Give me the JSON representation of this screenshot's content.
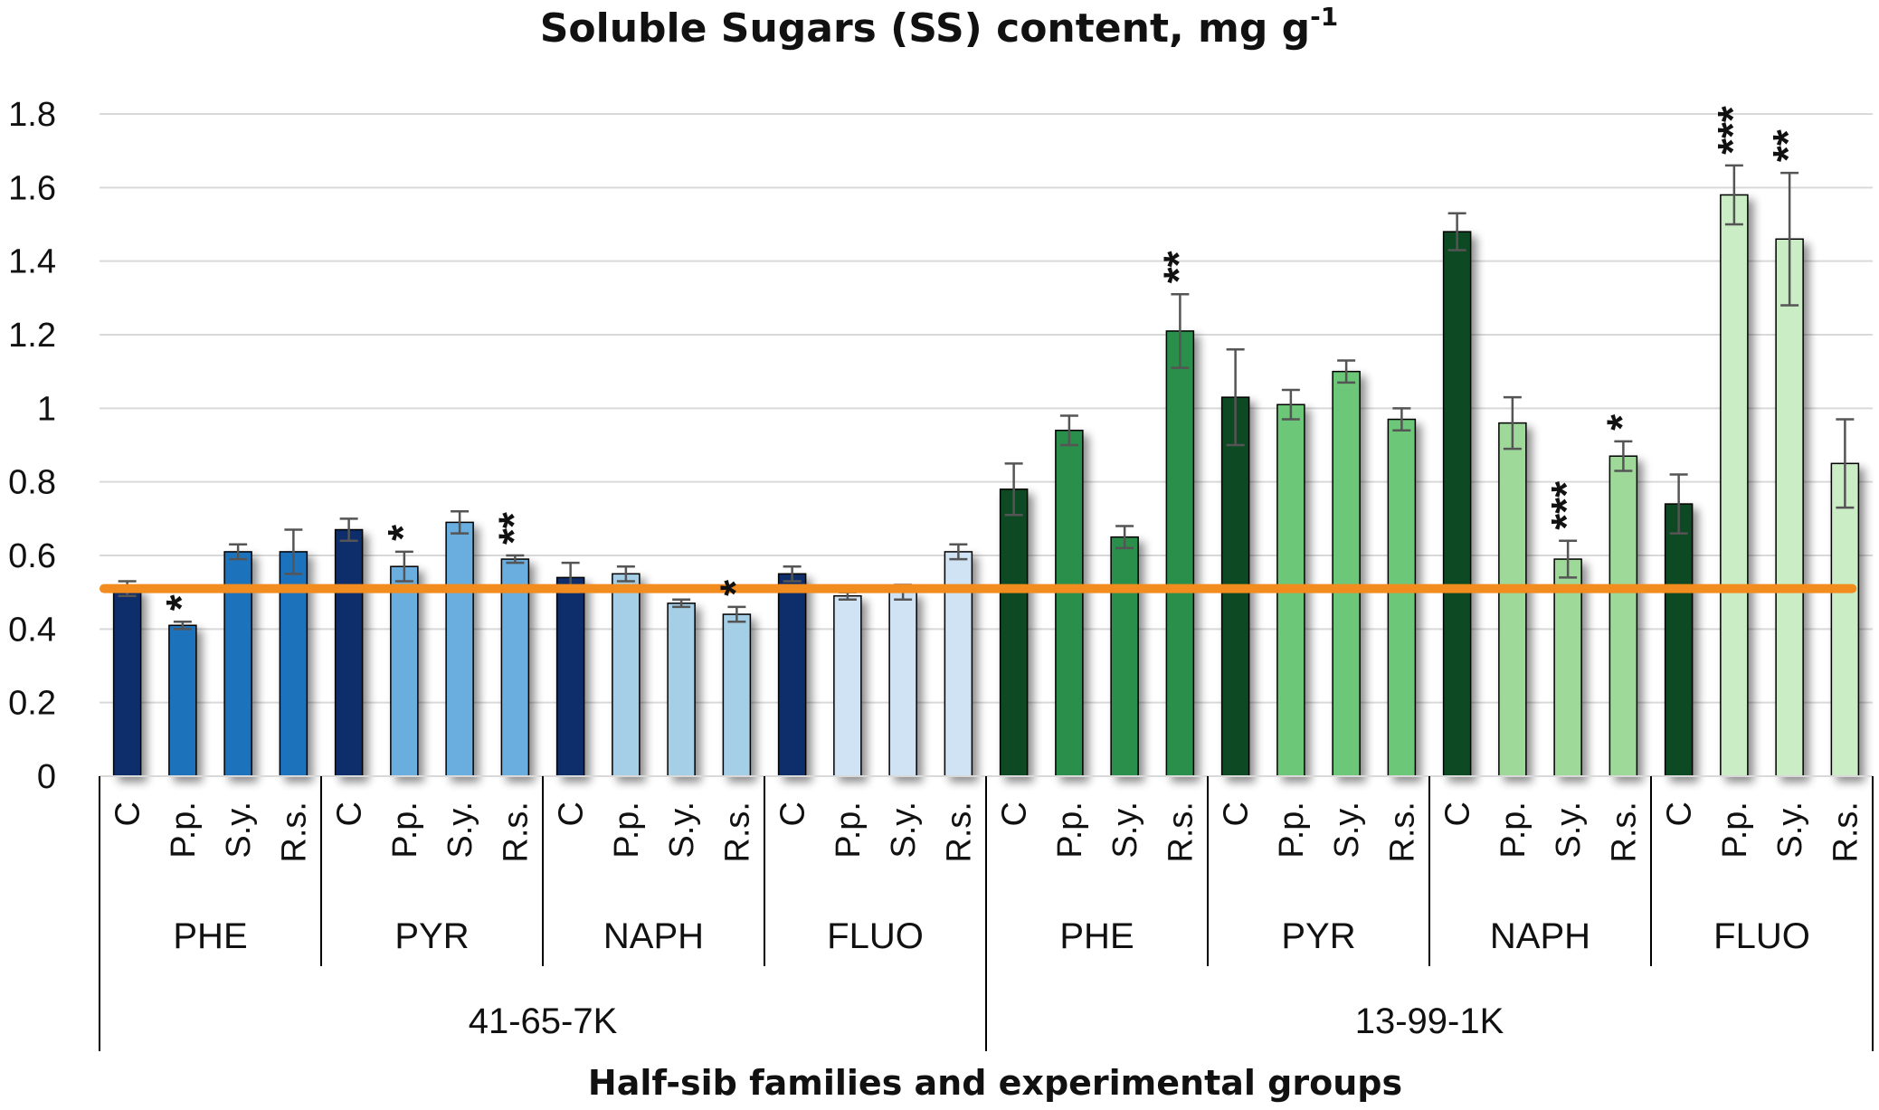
{
  "chart_data": {
    "type": "bar",
    "title": "Soluble Sugars (SS) content, mg g",
    "title_superscript": "-1",
    "xlabel": "Half-sib families and experimental groups",
    "ylabel": "",
    "ylim": [
      0,
      1.8
    ],
    "yticks": [
      {
        "value": 0,
        "label": "0"
      },
      {
        "value": 0.2,
        "label": "0.2"
      },
      {
        "value": 0.4,
        "label": "0.4"
      },
      {
        "value": 0.6,
        "label": "0.6"
      },
      {
        "value": 0.8,
        "label": "0.8"
      },
      {
        "value": 1.0,
        "label": "1"
      },
      {
        "value": 1.2,
        "label": "1.2"
      },
      {
        "value": 1.4,
        "label": "1.4"
      },
      {
        "value": 1.6,
        "label": "1.6"
      },
      {
        "value": 1.8,
        "label": "1.8"
      }
    ],
    "grid": true,
    "reference_line": {
      "value": 0.51,
      "color": "#F28C1E"
    },
    "families": [
      {
        "name": "41-65-7K",
        "groups": [
          {
            "name": "PHE",
            "bars": [
              {
                "label": "C",
                "value": 0.51,
                "err": 0.02,
                "sig": "",
                "color": "#0D2F6B"
              },
              {
                "label": "P.p.",
                "value": 0.41,
                "err": 0.01,
                "sig": "*",
                "color": "#1F73BC"
              },
              {
                "label": "S.y.",
                "value": 0.61,
                "err": 0.02,
                "sig": "",
                "color": "#1F73BC"
              },
              {
                "label": "R.s.",
                "value": 0.61,
                "err": 0.06,
                "sig": "",
                "color": "#1F73BC"
              }
            ]
          },
          {
            "name": "PYR",
            "bars": [
              {
                "label": "C",
                "value": 0.67,
                "err": 0.03,
                "sig": "",
                "color": "#0D2F6B"
              },
              {
                "label": "P.p.",
                "value": 0.57,
                "err": 0.04,
                "sig": "*",
                "color": "#6AAEDF"
              },
              {
                "label": "S.y.",
                "value": 0.69,
                "err": 0.03,
                "sig": "",
                "color": "#6AAEDF"
              },
              {
                "label": "R.s.",
                "value": 0.59,
                "err": 0.01,
                "sig": "**",
                "color": "#6AAEDF"
              }
            ]
          },
          {
            "name": "NAPH",
            "bars": [
              {
                "label": "C",
                "value": 0.54,
                "err": 0.04,
                "sig": "",
                "color": "#0D2F6B"
              },
              {
                "label": "P.p.",
                "value": 0.55,
                "err": 0.02,
                "sig": "",
                "color": "#A4CFE7"
              },
              {
                "label": "S.y.",
                "value": 0.47,
                "err": 0.01,
                "sig": "",
                "color": "#A4CFE7"
              },
              {
                "label": "R.s.",
                "value": 0.44,
                "err": 0.02,
                "sig": "*",
                "color": "#A4CFE7"
              }
            ]
          },
          {
            "name": "FLUO",
            "bars": [
              {
                "label": "C",
                "value": 0.55,
                "err": 0.02,
                "sig": "",
                "color": "#0D2F6B"
              },
              {
                "label": "P.p.",
                "value": 0.49,
                "err": 0.01,
                "sig": "",
                "color": "#CFE3F5"
              },
              {
                "label": "S.y.",
                "value": 0.5,
                "err": 0.02,
                "sig": "",
                "color": "#CFE3F5"
              },
              {
                "label": "R.s.",
                "value": 0.61,
                "err": 0.02,
                "sig": "",
                "color": "#CFE3F5"
              }
            ]
          }
        ]
      },
      {
        "name": "13-99-1K",
        "groups": [
          {
            "name": "PHE",
            "bars": [
              {
                "label": "C",
                "value": 0.78,
                "err": 0.07,
                "sig": "",
                "color": "#0B4A23"
              },
              {
                "label": "P.p.",
                "value": 0.94,
                "err": 0.04,
                "sig": "",
                "color": "#2A8F4C"
              },
              {
                "label": "S.y.",
                "value": 0.65,
                "err": 0.03,
                "sig": "",
                "color": "#2A8F4C"
              },
              {
                "label": "R.s.",
                "value": 1.21,
                "err": 0.1,
                "sig": "**",
                "color": "#2A8F4C"
              }
            ]
          },
          {
            "name": "PYR",
            "bars": [
              {
                "label": "C",
                "value": 1.03,
                "err": 0.13,
                "sig": "",
                "color": "#0B4A23"
              },
              {
                "label": "P.p.",
                "value": 1.01,
                "err": 0.04,
                "sig": "",
                "color": "#6CC778"
              },
              {
                "label": "S.y.",
                "value": 1.1,
                "err": 0.03,
                "sig": "",
                "color": "#6CC778"
              },
              {
                "label": "R.s.",
                "value": 0.97,
                "err": 0.03,
                "sig": "",
                "color": "#6CC778"
              }
            ]
          },
          {
            "name": "NAPH",
            "bars": [
              {
                "label": "C",
                "value": 1.48,
                "err": 0.05,
                "sig": "",
                "color": "#0B4A23"
              },
              {
                "label": "P.p.",
                "value": 0.96,
                "err": 0.07,
                "sig": "",
                "color": "#9ED99A"
              },
              {
                "label": "S.y.",
                "value": 0.59,
                "err": 0.05,
                "sig": "***",
                "color": "#9ED99A"
              },
              {
                "label": "R.s.",
                "value": 0.87,
                "err": 0.04,
                "sig": "*",
                "color": "#9ED99A"
              }
            ]
          },
          {
            "name": "FLUO",
            "bars": [
              {
                "label": "C",
                "value": 0.74,
                "err": 0.08,
                "sig": "",
                "color": "#0B4A23"
              },
              {
                "label": "P.p.",
                "value": 1.58,
                "err": 0.08,
                "sig": "***",
                "color": "#CBEDC6"
              },
              {
                "label": "S.y.",
                "value": 1.46,
                "err": 0.18,
                "sig": "**",
                "color": "#CBEDC6"
              },
              {
                "label": "R.s.",
                "value": 0.85,
                "err": 0.12,
                "sig": "",
                "color": "#CBEDC6"
              }
            ]
          }
        ]
      }
    ]
  }
}
